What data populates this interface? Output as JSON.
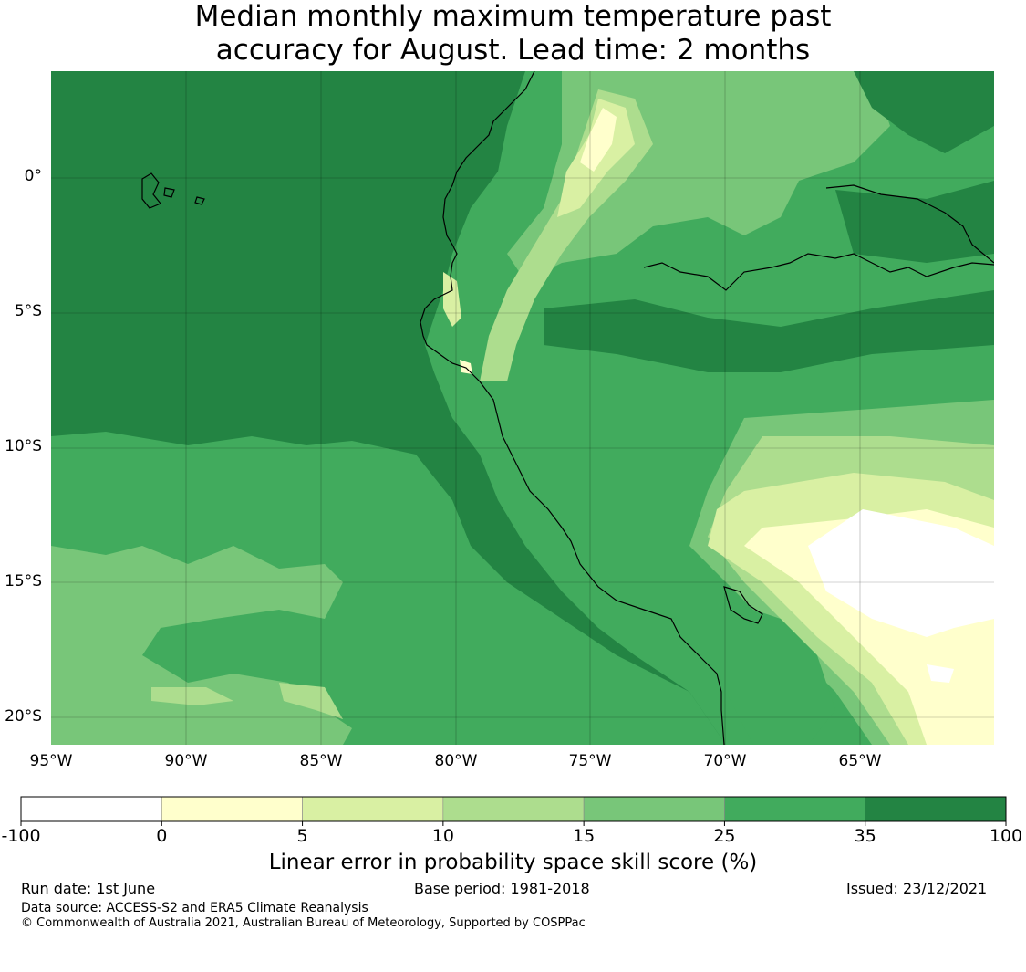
{
  "title": {
    "line1": "Median monthly maximum temperature past",
    "line2": "accuracy for August. Lead time: 2 months"
  },
  "map": {
    "lat_labels": [
      "0°",
      "5°S",
      "10°S",
      "15°S",
      "20°S"
    ],
    "lon_labels": [
      "95°W",
      "90°W",
      "85°W",
      "80°W",
      "75°W",
      "70°W",
      "65°W"
    ],
    "lat_values": [
      0,
      -5,
      -10,
      -15,
      -20
    ],
    "lon_values": [
      -95,
      -90,
      -85,
      -80,
      -75,
      -70,
      -65
    ],
    "extent": {
      "lon_min": -95,
      "lon_max": -60,
      "lat_min": -21,
      "lat_max": 4
    },
    "regions": [
      {
        "name": "ocean-skill",
        "class": "35-100"
      },
      {
        "name": "andes-low-skill",
        "class": "-100-5"
      }
    ]
  },
  "colorbar": {
    "ticks": [
      "-100",
      "0",
      "5",
      "10",
      "15",
      "25",
      "35",
      "100"
    ],
    "colors": [
      "#ffffff",
      "#ffffcc",
      "#d9f0a3",
      "#addd8e",
      "#78c679",
      "#41ab5d",
      "#238443"
    ],
    "label": "Linear error in probability space skill score (%)"
  },
  "footer": {
    "run_date": "Run date: 1st June",
    "base_period": "Base period: 1981-2018",
    "issued": "Issued: 23/12/2021",
    "data_source": "Data source: ACCESS-S2 and ERA5 Climate Reanalysis",
    "copyright": "© Commonwealth of Australia 2021, Australian Bureau of Meteorology, Supported by COSPPac"
  }
}
